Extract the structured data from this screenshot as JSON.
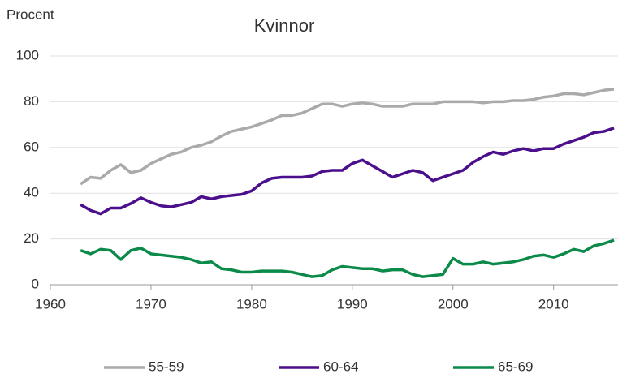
{
  "chart_data": {
    "type": "line",
    "title": "Kvinnor",
    "y_label": "Procent",
    "x": [
      1963,
      1964,
      1965,
      1966,
      1967,
      1968,
      1969,
      1970,
      1971,
      1972,
      1973,
      1974,
      1975,
      1976,
      1977,
      1978,
      1979,
      1980,
      1981,
      1982,
      1983,
      1984,
      1985,
      1986,
      1987,
      1988,
      1989,
      1990,
      1991,
      1992,
      1993,
      1994,
      1995,
      1996,
      1997,
      1998,
      1999,
      2000,
      2001,
      2002,
      2003,
      2004,
      2005,
      2006,
      2007,
      2008,
      2009,
      2010,
      2011,
      2012,
      2013,
      2014,
      2015,
      2016
    ],
    "series": [
      {
        "name": "55-59",
        "color": "#aaaaaa",
        "values": [
          44,
          47,
          46.5,
          50,
          52.5,
          49,
          50,
          53,
          55,
          57,
          58,
          60,
          61,
          62.5,
          65,
          67,
          68,
          69,
          70.5,
          72,
          74,
          74,
          75,
          77,
          79,
          79,
          78,
          79,
          79.5,
          79,
          78,
          78,
          78,
          79,
          79,
          79,
          80,
          80,
          80,
          80,
          79.5,
          80,
          80,
          80.5,
          80.5,
          81,
          82,
          82.5,
          83.5,
          83.5,
          83,
          84,
          85,
          85.5
        ]
      },
      {
        "name": "60-64",
        "color": "#4b0f8c",
        "values": [
          35,
          32.5,
          31,
          33.5,
          33.5,
          35.5,
          38,
          36,
          34.5,
          34,
          35,
          36,
          38.5,
          37.5,
          38.5,
          39,
          39.5,
          41,
          44.5,
          46.5,
          47,
          47,
          47,
          47.5,
          49.5,
          50,
          50,
          53,
          54.5,
          52,
          49.5,
          47,
          48.5,
          50,
          49,
          45.5,
          47,
          48.5,
          50,
          53.5,
          56,
          58,
          57,
          58.5,
          59.5,
          58.5,
          59.5,
          59.5,
          61.5,
          63,
          64.5,
          66.5,
          67,
          68.5
        ]
      },
      {
        "name": "65-69",
        "color": "#0c8a4a",
        "values": [
          15,
          13.5,
          15.5,
          15,
          11,
          15,
          16,
          13.5,
          13,
          12.5,
          12,
          11,
          9.5,
          10,
          7,
          6.5,
          5.5,
          5.5,
          6,
          6,
          6,
          5.5,
          4.5,
          3.5,
          4,
          6.5,
          8,
          7.5,
          7,
          7,
          6,
          6.5,
          6.5,
          4.5,
          3.5,
          4,
          4.5,
          11.5,
          9,
          9,
          10,
          9,
          9.5,
          10,
          11,
          12.5,
          13,
          12,
          13.5,
          15.5,
          14.5,
          17,
          18,
          19.5
        ]
      }
    ],
    "xlim": [
      1960,
      2016.4
    ],
    "xticks": [
      1960,
      1970,
      1980,
      1990,
      2000,
      2010
    ],
    "ylim": [
      0,
      100
    ],
    "yticks": [
      0,
      20,
      40,
      60,
      80,
      100
    ],
    "grid": true
  }
}
